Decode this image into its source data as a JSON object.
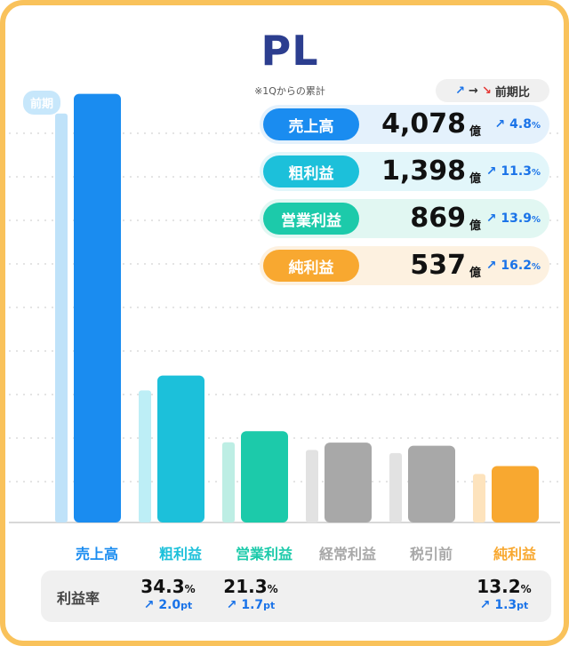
{
  "title": "PL",
  "subtitle": "※1Qからの累計",
  "prev_label": "前期",
  "legend": {
    "up": "↗",
    "right": "→",
    "down": "↘",
    "label": "前期比"
  },
  "kpis": [
    {
      "label": "売上高",
      "value": "4,078",
      "unit": "億",
      "yoy": "4.8",
      "yoy_unit": "%",
      "color": "#1a8cf0",
      "bg": "#e4f1fc"
    },
    {
      "label": "粗利益",
      "value": "1,398",
      "unit": "億",
      "yoy": "11.3",
      "yoy_unit": "%",
      "color": "#1cc0da",
      "bg": "#e2f6fa"
    },
    {
      "label": "営業利益",
      "value": "869",
      "unit": "億",
      "yoy": "13.9",
      "yoy_unit": "%",
      "color": "#1ccaaa",
      "bg": "#e1f7f2"
    },
    {
      "label": "純利益",
      "value": "537",
      "unit": "億",
      "yoy": "16.2",
      "yoy_unit": "%",
      "color": "#f8a830",
      "bg": "#fdf1e0"
    }
  ],
  "margin_label": "利益率",
  "margins": [
    {
      "value": "34.3",
      "unit": "%",
      "change": "2.0",
      "change_unit": "pt"
    },
    {
      "value": "21.3",
      "unit": "%",
      "change": "1.7",
      "change_unit": "pt"
    },
    {
      "value": "13.2",
      "unit": "%",
      "change": "1.3",
      "change_unit": "pt"
    }
  ],
  "chart_data": {
    "type": "bar",
    "categories": [
      "売上高",
      "粗利益",
      "営業利益",
      "経常利益",
      "税引前",
      "純利益"
    ],
    "series": [
      {
        "name": "前期",
        "values": [
          3891,
          1256,
          763,
          690,
          660,
          462
        ]
      },
      {
        "values": [
          4078,
          1398,
          869,
          760,
          730,
          537
        ]
      }
    ],
    "colors": {
      "current": [
        "#1a8cf0",
        "#1cc0da",
        "#1ccaaa",
        "#a8a8a8",
        "#a8a8a8",
        "#f8a830"
      ],
      "previous": [
        "#bfe2f9",
        "#bdeef6",
        "#bdeee4",
        "#e2e2e2",
        "#e2e2e2",
        "#fde3bd"
      ],
      "labels": [
        "#1a8cf0",
        "#1cc0da",
        "#1ccaaa",
        "#a8a8a8",
        "#a8a8a8",
        "#f8a830"
      ]
    },
    "ylim": [
      0,
      4100
    ],
    "grid": true
  }
}
